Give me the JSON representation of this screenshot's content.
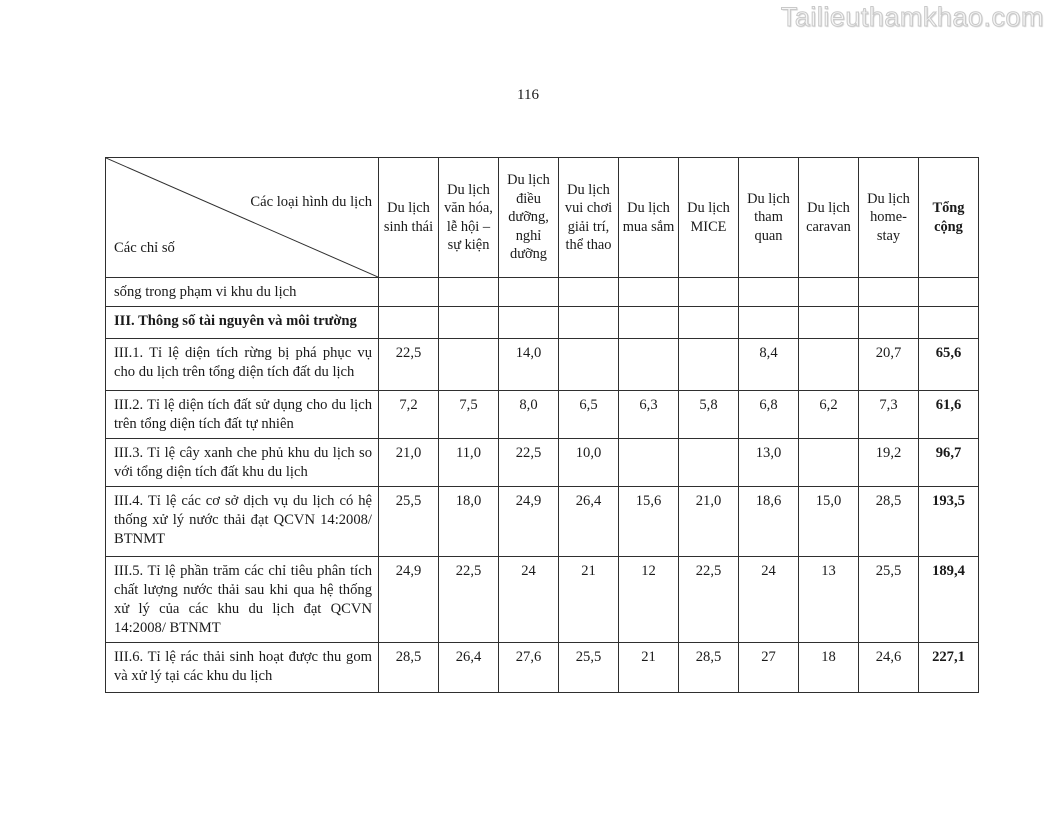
{
  "watermark": "Tailieuthamkhao.com",
  "page_number": "116",
  "table": {
    "corner": {
      "types_label": "Các loại hình du lịch",
      "indicators_label": "Các chỉ số"
    },
    "column_headers": [
      "Du lịch sinh thái",
      "Du lịch văn hóa, lễ hội – sự kiện",
      "Du lịch điều dưỡng, nghỉ dưỡng",
      "Du lịch vui chơi giải trí, thể thao",
      "Du lịch mua sắm",
      "Du lịch MICE",
      "Du lịch tham quan",
      "Du lịch caravan",
      "Du lịch home-stay",
      "Tổng cộng"
    ],
    "rows": [
      {
        "label": "sống trong phạm vi khu du lịch",
        "bold": false,
        "values": [
          "",
          "",
          "",
          "",
          "",
          "",
          "",
          "",
          "",
          ""
        ]
      },
      {
        "label": "III. Thông số tài nguyên và môi trường",
        "bold": true,
        "values": [
          "",
          "",
          "",
          "",
          "",
          "",
          "",
          "",
          "",
          ""
        ]
      },
      {
        "label": "III.1. Tỉ lệ diện tích rừng bị phá phục vụ cho du lịch trên tổng diện tích đất du lịch",
        "bold": false,
        "values": [
          "22,5",
          "",
          "14,0",
          "",
          "",
          "",
          "8,4",
          "",
          "20,7",
          "65,6"
        ]
      },
      {
        "label": "III.2. Tỉ lệ diện tích đất sử dụng cho du lịch trên tổng diện tích đất tự nhiên",
        "bold": false,
        "values": [
          "7,2",
          "7,5",
          "8,0",
          "6,5",
          "6,3",
          "5,8",
          "6,8",
          "6,2",
          "7,3",
          "61,6"
        ]
      },
      {
        "label": "III.3. Tỉ lệ cây xanh che phủ khu du lịch so với tổng diện tích đất khu du lịch",
        "bold": false,
        "values": [
          "21,0",
          "11,0",
          "22,5",
          "10,0",
          "",
          "",
          "13,0",
          "",
          "19,2",
          "96,7"
        ]
      },
      {
        "label": "III.4. Tỉ lệ các cơ sở dịch vụ du lịch có hệ thống xử lý nước thải đạt QCVN 14:2008/ BTNMT",
        "bold": false,
        "values": [
          "25,5",
          "18,0",
          "24,9",
          "26,4",
          "15,6",
          "21,0",
          "18,6",
          "15,0",
          "28,5",
          "193,5"
        ]
      },
      {
        "label": "III.5. Tỉ lệ phần trăm các chỉ tiêu phân tích chất lượng nước thải sau khi qua hệ thống xử lý của các khu du lịch đạt QCVN 14:2008/ BTNMT",
        "bold": false,
        "values": [
          "24,9",
          "22,5",
          "24",
          "21",
          "12",
          "22,5",
          "24",
          "13",
          "25,5",
          "189,4"
        ]
      },
      {
        "label": "III.6. Tỉ lệ rác thải sinh hoạt được thu gom và xử lý tại các khu du lịch",
        "bold": false,
        "values": [
          "28,5",
          "26,4",
          "27,6",
          "25,5",
          "21",
          "28,5",
          "27",
          "18",
          "24,6",
          "227,1"
        ]
      }
    ]
  }
}
